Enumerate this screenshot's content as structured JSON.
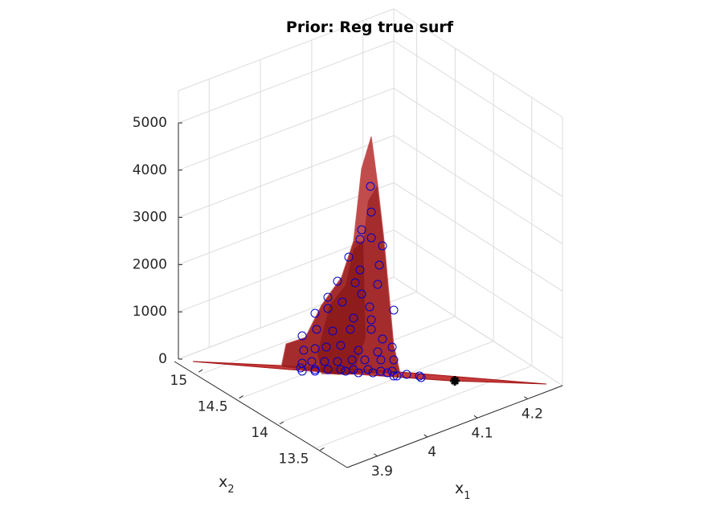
{
  "chart_data": {
    "type": "surface3d",
    "title": "Prior: Reg true surf",
    "xlabel": "x",
    "xlabel_sub": "1",
    "ylabel": "x",
    "ylabel_sub": "2",
    "zlabel": "",
    "x_ticks": [
      "3.9",
      "4",
      "4.1",
      "4.2"
    ],
    "y_ticks": [
      "13.5",
      "14",
      "14.5",
      "15"
    ],
    "z_ticks": [
      "0",
      "1000",
      "2000",
      "3000",
      "4000",
      "5000"
    ],
    "zlim": [
      0,
      5000
    ],
    "grid": true,
    "surface_color": "#a31515",
    "marker_color": "#0000cc",
    "highlight_color": "#000000",
    "highlight_point": {
      "x": 4.05,
      "y": 13.8,
      "z": 0
    }
  }
}
